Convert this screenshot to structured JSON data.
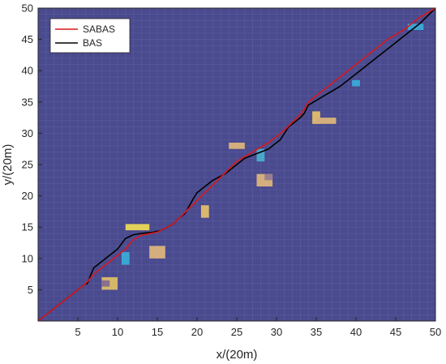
{
  "chart_data": {
    "type": "line",
    "xlabel": "x/(20m)",
    "ylabel": "y/(20m)",
    "xlim": [
      0,
      50
    ],
    "ylim": [
      0,
      50
    ],
    "xticks": [
      5,
      10,
      15,
      20,
      25,
      30,
      35,
      40,
      45,
      50
    ],
    "yticks": [
      5,
      10,
      15,
      20,
      25,
      30,
      35,
      40,
      45,
      50
    ],
    "grid": true,
    "legend_position": "top-left",
    "background_color": "#4a4a8e",
    "series": [
      {
        "name": "SABAS",
        "color": "#d7191c",
        "x": [
          0,
          6.0,
          7.0,
          9.0,
          11.0,
          12.0,
          13.0,
          15.0,
          17.0,
          19.0,
          21.0,
          23.0,
          25.0,
          27.0,
          29.0,
          31.0,
          33.0,
          33.5,
          34.0,
          36.0,
          38.0,
          40.0,
          42.0,
          44.0,
          46.0,
          48.0,
          50
        ],
        "y": [
          0,
          6.0,
          7.5,
          9.5,
          11.5,
          13.0,
          13.7,
          14.2,
          15.5,
          18.0,
          20.5,
          23.0,
          25.5,
          27.0,
          28.5,
          30.5,
          33.0,
          33.8,
          35.0,
          37.0,
          39.0,
          41.0,
          43.0,
          45.0,
          46.5,
          48.5,
          50
        ]
      },
      {
        "name": "BAS",
        "color": "#000000",
        "x": [
          0,
          5.8,
          6.2,
          6.5,
          7.0,
          9.0,
          10.0,
          11.0,
          12.0,
          13.0,
          14.5,
          15.5,
          17.0,
          17.8,
          18.5,
          19.5,
          20.0,
          21.0,
          22.0,
          23.5,
          25.0,
          26.0,
          27.0,
          28.0,
          29.0,
          30.5,
          31.5,
          33.0,
          33.5,
          34.0,
          36.0,
          38.0,
          40.0,
          42.0,
          44.0,
          46.0,
          48.0,
          50
        ],
        "y": [
          0,
          5.8,
          6.0,
          7.0,
          8.5,
          10.5,
          11.5,
          13.2,
          13.8,
          14.0,
          14.2,
          14.5,
          15.5,
          16.5,
          17.2,
          19.5,
          20.5,
          21.5,
          22.5,
          23.5,
          25.0,
          26.0,
          26.5,
          27.0,
          27.5,
          29.0,
          31.0,
          32.5,
          33.2,
          34.5,
          36.0,
          37.5,
          39.5,
          41.5,
          43.5,
          45.5,
          47.5,
          50
        ]
      }
    ],
    "legend": {
      "items": [
        "SABAS",
        "BAS"
      ]
    },
    "obstacles": [
      {
        "x": [
          8,
          10
        ],
        "y": [
          5,
          7
        ],
        "color": "#d4b86a"
      },
      {
        "x": [
          8,
          9
        ],
        "y": [
          5.5,
          6.5
        ],
        "color": "#8a6f8f"
      },
      {
        "x": [
          10.5,
          11.5
        ],
        "y": [
          9,
          11
        ],
        "color": "#3ba6d6"
      },
      {
        "x": [
          11,
          14
        ],
        "y": [
          14.5,
          15.5
        ],
        "color": "#e3d15a"
      },
      {
        "x": [
          14,
          16
        ],
        "y": [
          10,
          12
        ],
        "color": "#d4ae7c"
      },
      {
        "x": [
          20.5,
          21.5
        ],
        "y": [
          16.5,
          18.5
        ],
        "color": "#d9b86e"
      },
      {
        "x": [
          24,
          26
        ],
        "y": [
          27.5,
          28.5
        ],
        "color": "#d4ae7c"
      },
      {
        "x": [
          27.5,
          28.5
        ],
        "y": [
          25.5,
          27.5
        ],
        "color": "#4aa8c8"
      },
      {
        "x": [
          27.5,
          29.5
        ],
        "y": [
          21.5,
          23.5
        ],
        "color": "#d4ae7c"
      },
      {
        "x": [
          28.5,
          29.5
        ],
        "y": [
          22.5,
          23.5
        ],
        "color": "#9a7f92"
      },
      {
        "x": [
          34.5,
          35.5
        ],
        "y": [
          31.5,
          33.5
        ],
        "color": "#d9b86e"
      },
      {
        "x": [
          35,
          37.5
        ],
        "y": [
          31.5,
          32.5
        ],
        "color": "#d4ae7c"
      },
      {
        "x": [
          39.5,
          40.5
        ],
        "y": [
          37.5,
          38.5
        ],
        "color": "#3ba6d6"
      },
      {
        "x": [
          46.5,
          48.5
        ],
        "y": [
          46.5,
          47.5
        ],
        "color": "#3ba6d6"
      }
    ]
  }
}
